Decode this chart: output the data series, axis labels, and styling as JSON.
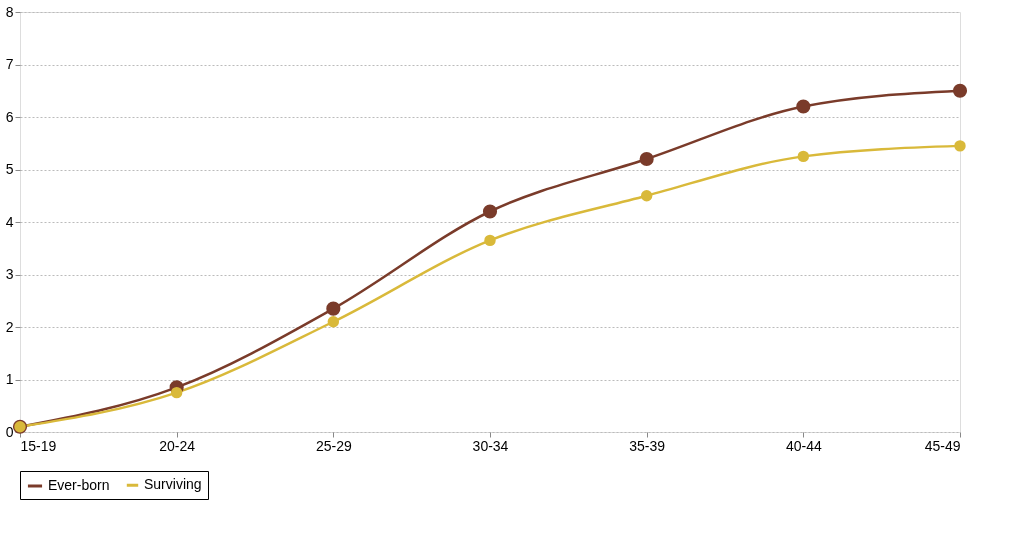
{
  "chart_data": {
    "type": "line",
    "categories": [
      "15-19",
      "20-24",
      "25-29",
      "30-34",
      "35-39",
      "40-44",
      "45-49"
    ],
    "series": [
      {
        "name": "Ever-born",
        "color": "#7a3b2a",
        "values": [
          0.1,
          0.85,
          2.35,
          4.2,
          5.2,
          6.2,
          6.5
        ]
      },
      {
        "name": "Surviving",
        "color": "#d9b93a",
        "values": [
          0.1,
          0.75,
          2.1,
          3.65,
          4.5,
          5.25,
          5.45
        ]
      }
    ],
    "ylim": [
      0,
      8
    ],
    "yticks": [
      0,
      1,
      2,
      3,
      4,
      5,
      6,
      7,
      8
    ],
    "grid": "y",
    "legend": "bottom",
    "marker": "circle",
    "line_style": "solid"
  }
}
